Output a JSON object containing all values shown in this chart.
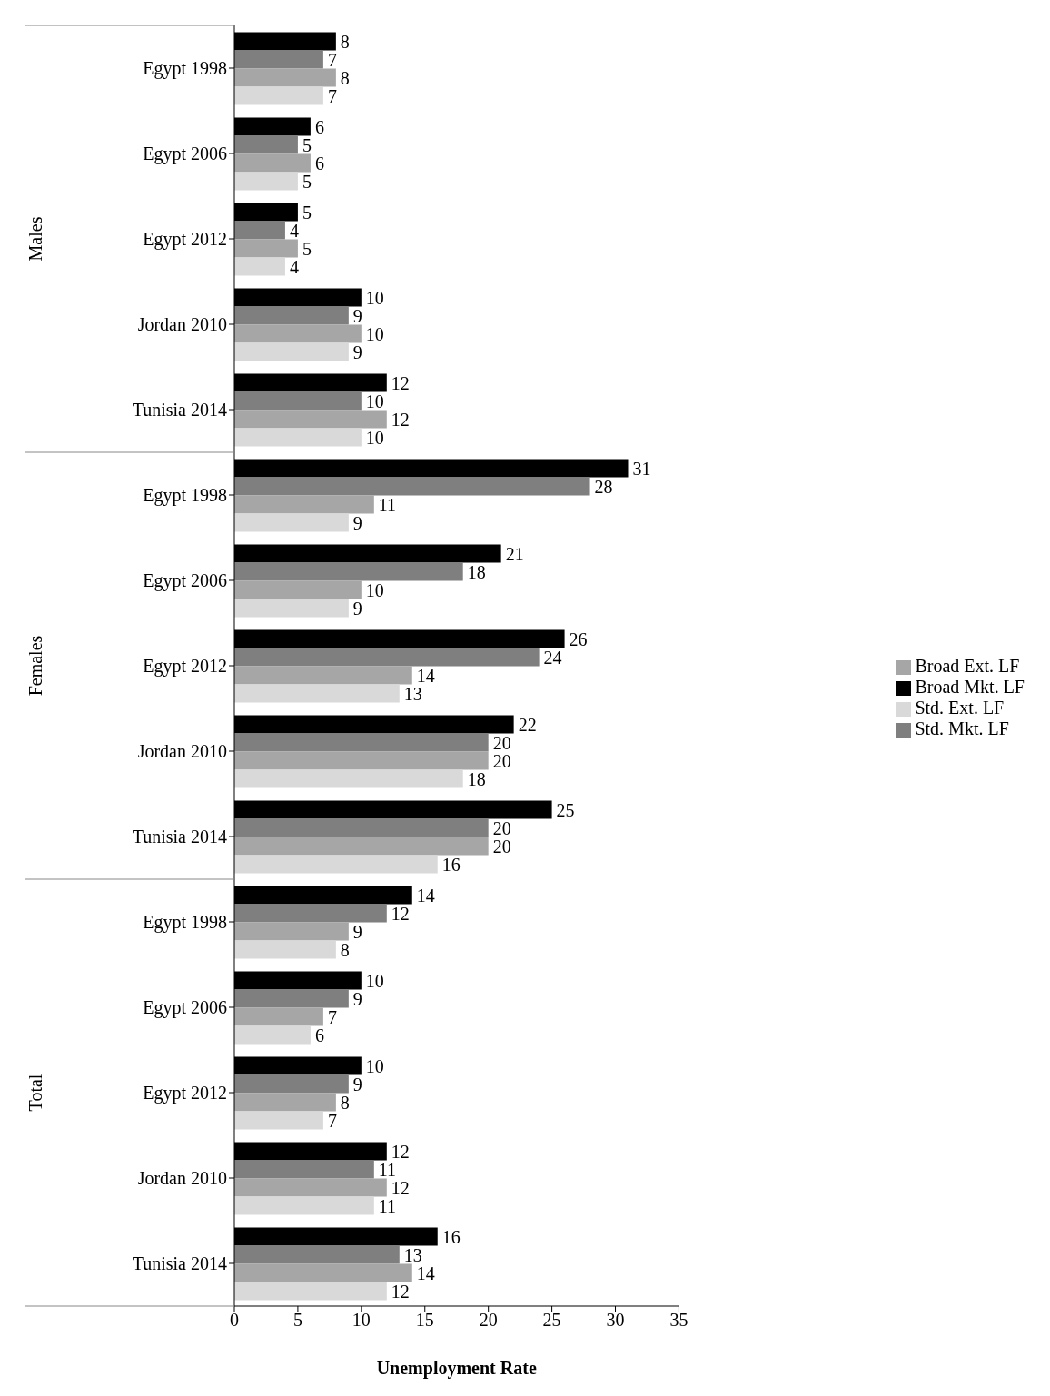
{
  "chart_data": {
    "type": "bar",
    "orientation": "horizontal",
    "xlabel": "Unemployment Rate",
    "categories": [
      "Egypt 1998",
      "Egypt 2006",
      "Egypt 2012",
      "Jordan 2010",
      "Tunisia 2014",
      "Egypt 1998",
      "Egypt 2006",
      "Egypt 2012",
      "Jordan 2010",
      "Tunisia 2014",
      "Egypt 1998",
      "Egypt 2006",
      "Egypt 2012",
      "Jordan 2010",
      "Tunisia 2014"
    ],
    "annotations": [
      "Males",
      "Females",
      "Total"
    ],
    "series": [
      {
        "name": "Broad Mkt. LF",
        "color": "#000000",
        "values": [
          8,
          6,
          5,
          10,
          12,
          31,
          21,
          26,
          22,
          25,
          14,
          10,
          10,
          12,
          16
        ]
      },
      {
        "name": "Std. Mkt. LF",
        "color": "#7f7f7f",
        "values": [
          7,
          5,
          4,
          9,
          10,
          28,
          18,
          24,
          20,
          20,
          12,
          9,
          9,
          11,
          13
        ]
      },
      {
        "name": "Broad Ext. LF",
        "color": "#a6a6a6",
        "values": [
          8,
          6,
          5,
          10,
          12,
          11,
          10,
          14,
          20,
          20,
          9,
          7,
          8,
          12,
          14
        ]
      },
      {
        "name": "Std. Ext. LF",
        "color": "#d9d9d9",
        "values": [
          7,
          5,
          4,
          9,
          10,
          9,
          9,
          13,
          18,
          16,
          8,
          6,
          7,
          11,
          12
        ]
      }
    ],
    "xlim": [
      0,
      35
    ],
    "xticks": [
      0,
      5,
      10,
      15,
      20,
      25,
      30,
      35
    ],
    "data_labels": true,
    "legend": "right",
    "grid": false
  }
}
